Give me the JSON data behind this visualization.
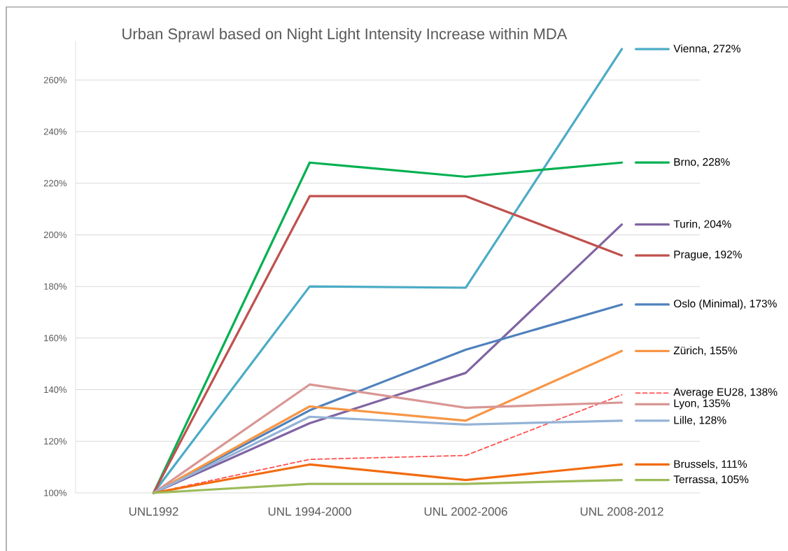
{
  "chart_data": {
    "type": "line",
    "title": "Urban Sprawl based on Night Light Intensity Increase within MDA",
    "categories": [
      "UNL1992",
      "UNL 1994-2000",
      "UNL 2002-2006",
      "UNL 2008-2012"
    ],
    "series": [
      {
        "name": "Vienna, 272%",
        "color": "#4bacc6",
        "values": [
          100,
          180,
          179.5,
          272
        ]
      },
      {
        "name": "Brno, 228%",
        "color": "#00b050",
        "values": [
          100,
          228,
          222.5,
          228
        ]
      },
      {
        "name": "Turin, 204%",
        "color": "#8064a2",
        "values": [
          100,
          127,
          146.5,
          204
        ]
      },
      {
        "name": "Prague, 192%",
        "color": "#c0504d",
        "values": [
          100,
          215,
          215,
          192
        ]
      },
      {
        "name": "Oslo (Minimal), 173%",
        "color": "#4f81bd",
        "values": [
          100,
          132,
          155.5,
          173
        ]
      },
      {
        "name": "Zürich, 155%",
        "color": "#f79646",
        "values": [
          100,
          133.5,
          128,
          155
        ]
      },
      {
        "name": "Average EU28, 138%",
        "color": "#ff5050",
        "line_style": "dashed",
        "values": [
          100,
          113,
          114.5,
          138
        ]
      },
      {
        "name": "Lyon, 135%",
        "color": "#d99694",
        "values": [
          100,
          142,
          133,
          135
        ]
      },
      {
        "name": "Lille, 128%",
        "color": "#95b3d7",
        "values": [
          100,
          129.5,
          126.5,
          128
        ]
      },
      {
        "name": "Brussels, 111%",
        "color": "#f26b0f",
        "values": [
          100,
          111,
          105,
          111
        ]
      },
      {
        "name": "Terrassa, 105%",
        "color": "#9bbb59",
        "values": [
          100,
          103.5,
          103.5,
          105
        ]
      }
    ],
    "ylim": [
      100,
      275
    ],
    "yticks": [
      {
        "value": 100,
        "label": "100%"
      },
      {
        "value": 120,
        "label": "120%"
      },
      {
        "value": 140,
        "label": "140%"
      },
      {
        "value": 160,
        "label": "160%"
      },
      {
        "value": 180,
        "label": "180%"
      },
      {
        "value": 200,
        "label": "200%"
      },
      {
        "value": 220,
        "label": "220%"
      },
      {
        "value": 240,
        "label": "240%"
      },
      {
        "value": 260,
        "label": "260%"
      }
    ],
    "grid": "y",
    "legend": "right",
    "line_style": "solid",
    "marker": "none"
  }
}
